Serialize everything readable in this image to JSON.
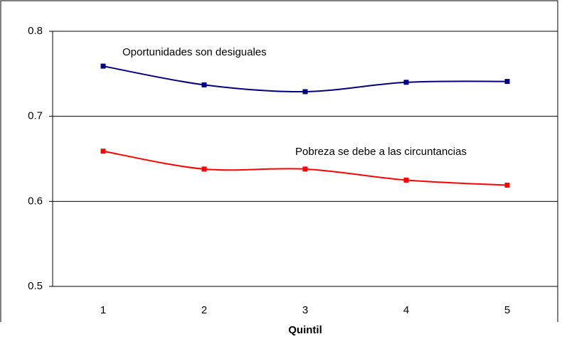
{
  "chart_data": {
    "type": "line",
    "categories": [
      "1",
      "2",
      "3",
      "4",
      "5"
    ],
    "series": [
      {
        "name": "Oportunidades son desiguales",
        "color": "#000080",
        "values": [
          0.759,
          0.737,
          0.729,
          0.74,
          0.741
        ]
      },
      {
        "name": "Pobreza se debe a las circuntancias",
        "color": "#ff0000",
        "values": [
          0.659,
          0.638,
          0.638,
          0.625,
          0.619
        ]
      }
    ],
    "xlabel": "Quintil",
    "ylim": [
      0.5,
      0.8
    ],
    "yticks": [
      0.5,
      0.6,
      0.7,
      0.8
    ],
    "grid": true
  }
}
